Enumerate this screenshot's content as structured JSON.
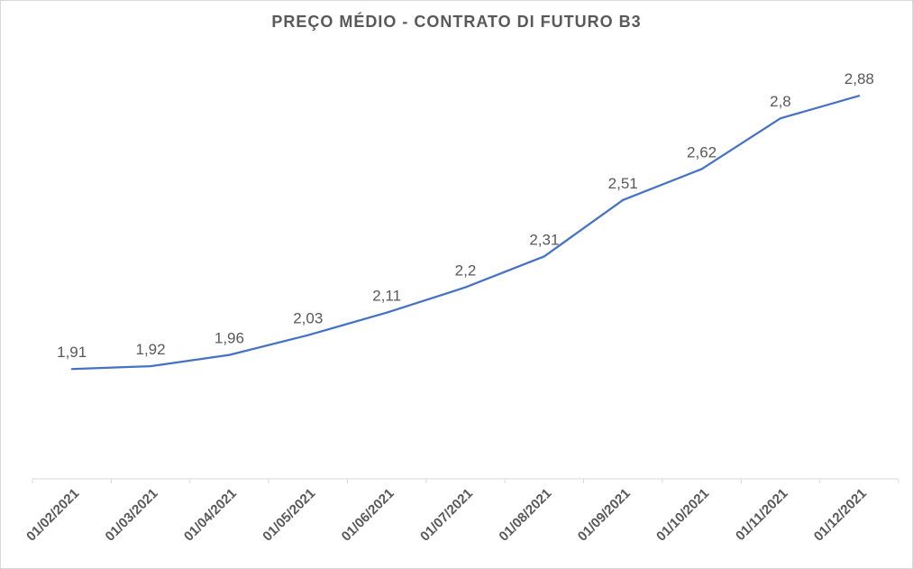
{
  "chart_data": {
    "type": "line",
    "title": "PREÇO MÉDIO - CONTRATO DI FUTURO B3",
    "xlabel": "",
    "ylabel": "",
    "categories": [
      "01/02/2021",
      "01/03/2021",
      "01/04/2021",
      "01/05/2021",
      "01/06/2021",
      "01/07/2021",
      "01/08/2021",
      "01/09/2021",
      "01/10/2021",
      "01/11/2021",
      "01/12/2021"
    ],
    "series": [
      {
        "values": [
          1.91,
          1.92,
          1.96,
          2.03,
          2.11,
          2.2,
          2.31,
          2.51,
          2.62,
          2.8,
          2.88
        ],
        "labels": [
          "1,91",
          "1,92",
          "1,96",
          "2,03",
          "2,11",
          "2,2",
          "2,31",
          "2,51",
          "2,62",
          "2,8",
          "2,88"
        ],
        "color": "#4472C4"
      }
    ],
    "ylim": [
      1.52,
      2.9
    ],
    "grid": false,
    "legend": "none"
  }
}
